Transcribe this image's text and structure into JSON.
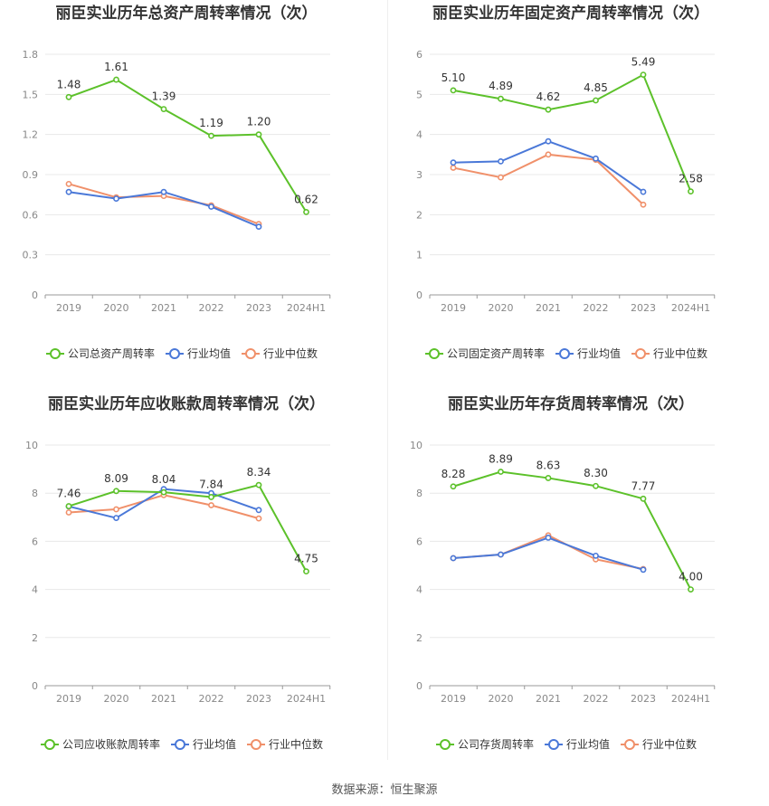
{
  "source_text": "数据来源：恒生聚源",
  "colors": {
    "company": "#5cc12a",
    "avg": "#4a78d8",
    "median": "#f0906a"
  },
  "chart_data": [
    {
      "type": "line",
      "title": "丽臣实业历年总资产周转率情况（次）",
      "categories": [
        "2019",
        "2020",
        "2021",
        "2022",
        "2023",
        "2024H1"
      ],
      "ylim": [
        0,
        1.8
      ],
      "yticks": [
        "0",
        "0.3",
        "0.6",
        "0.9",
        "1.2",
        "1.5",
        "1.8"
      ],
      "grid": true,
      "legend_position": "bottom",
      "series": [
        {
          "name": "公司总资产周转率",
          "values": [
            1.48,
            1.61,
            1.39,
            1.19,
            1.2,
            0.62
          ],
          "labels": [
            "1.48",
            "1.61",
            "1.39",
            "1.19",
            "1.20",
            "0.62"
          ]
        },
        {
          "name": "行业均值",
          "values": [
            0.77,
            0.72,
            0.77,
            0.66,
            0.51,
            null
          ]
        },
        {
          "name": "行业中位数",
          "values": [
            0.83,
            0.73,
            0.74,
            0.67,
            0.53,
            null
          ]
        }
      ]
    },
    {
      "type": "line",
      "title": "丽臣实业历年固定资产周转率情况（次）",
      "categories": [
        "2019",
        "2020",
        "2021",
        "2022",
        "2023",
        "2024H1"
      ],
      "ylim": [
        0,
        6
      ],
      "yticks": [
        "0",
        "1",
        "2",
        "3",
        "4",
        "5",
        "6"
      ],
      "grid": true,
      "legend_position": "bottom",
      "series": [
        {
          "name": "公司固定资产周转率",
          "values": [
            5.1,
            4.89,
            4.62,
            4.85,
            5.49,
            2.58
          ],
          "labels": [
            "5.10",
            "4.89",
            "4.62",
            "4.85",
            "5.49",
            "2.58"
          ]
        },
        {
          "name": "行业均值",
          "values": [
            3.3,
            3.33,
            3.83,
            3.4,
            2.57,
            null
          ]
        },
        {
          "name": "行业中位数",
          "values": [
            3.17,
            2.93,
            3.5,
            3.37,
            2.25,
            null
          ]
        }
      ]
    },
    {
      "type": "line",
      "title": "丽臣实业历年应收账款周转率情况（次）",
      "categories": [
        "2019",
        "2020",
        "2021",
        "2022",
        "2023",
        "2024H1"
      ],
      "ylim": [
        0,
        10
      ],
      "yticks": [
        "0",
        "2",
        "4",
        "6",
        "8",
        "10"
      ],
      "grid": true,
      "legend_position": "bottom",
      "series": [
        {
          "name": "公司应收账款周转率",
          "values": [
            7.46,
            8.09,
            8.04,
            7.84,
            8.34,
            4.75
          ],
          "labels": [
            "7.46",
            "8.09",
            "8.04",
            "7.84",
            "8.34",
            "4.75"
          ]
        },
        {
          "name": "行业均值",
          "values": [
            7.45,
            6.97,
            8.17,
            8.0,
            7.3,
            null
          ]
        },
        {
          "name": "行业中位数",
          "values": [
            7.2,
            7.33,
            7.92,
            7.5,
            6.95,
            null
          ]
        }
      ]
    },
    {
      "type": "line",
      "title": "丽臣实业历年存货周转率情况（次）",
      "categories": [
        "2019",
        "2020",
        "2021",
        "2022",
        "2023",
        "2024H1"
      ],
      "ylim": [
        0,
        10
      ],
      "yticks": [
        "0",
        "2",
        "4",
        "6",
        "8",
        "10"
      ],
      "grid": true,
      "legend_position": "bottom",
      "series": [
        {
          "name": "公司存货周转率",
          "values": [
            8.28,
            8.89,
            8.63,
            8.3,
            7.77,
            4.0
          ],
          "labels": [
            "8.28",
            "8.89",
            "8.63",
            "8.30",
            "7.77",
            "4.00"
          ]
        },
        {
          "name": "行业均值",
          "values": [
            5.3,
            5.45,
            6.15,
            5.4,
            4.82,
            null
          ]
        },
        {
          "name": "行业中位数",
          "values": [
            5.3,
            5.45,
            6.25,
            5.25,
            4.85,
            null
          ]
        }
      ]
    }
  ]
}
